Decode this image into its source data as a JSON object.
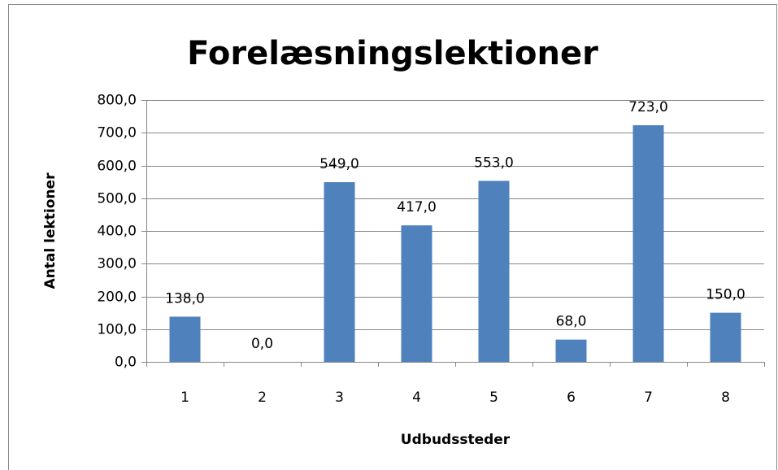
{
  "chart_data": {
    "type": "bar",
    "title": "Forelæsningslektioner",
    "x_label": "Udbudssteder",
    "y_label": "Antal lektioner",
    "categories": [
      "1",
      "2",
      "3",
      "4",
      "5",
      "6",
      "7",
      "8"
    ],
    "values": [
      138,
      0,
      549,
      417,
      553,
      68,
      723,
      150
    ],
    "value_labels": [
      "138,0",
      "0,0",
      "549,0",
      "417,0",
      "553,0",
      "68,0",
      "723,0",
      "150,0"
    ],
    "color": "#4f81bd",
    "ylim": [
      0,
      800
    ],
    "yticks": [
      {
        "value": 0,
        "label": "0,0"
      },
      {
        "value": 100,
        "label": "100,0"
      },
      {
        "value": 200,
        "label": "200,0"
      },
      {
        "value": 300,
        "label": "300,0"
      },
      {
        "value": 400,
        "label": "400,0"
      },
      {
        "value": 500,
        "label": "500,0"
      },
      {
        "value": 600,
        "label": "600,0"
      },
      {
        "value": 700,
        "label": "700,0"
      },
      {
        "value": 800,
        "label": "800,0"
      }
    ],
    "grid": true
  }
}
